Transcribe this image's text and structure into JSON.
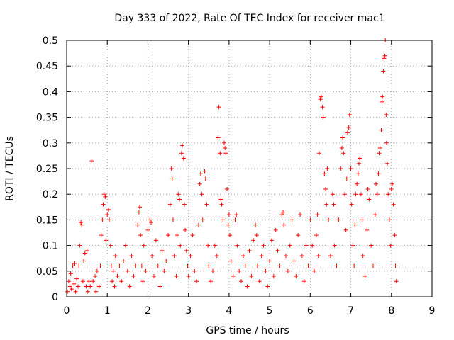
{
  "chart_data": {
    "type": "scatter",
    "title": "Day 333 of 2022, Rate Of TEC Index for receiver mac1",
    "xlabel": "GPS time / hours",
    "ylabel": "ROTI / TECUs",
    "xlim": [
      0,
      9
    ],
    "ylim": [
      0,
      0.5
    ],
    "grid": true,
    "marker": "+",
    "color": "#ff0000",
    "x_ticks": [
      "0",
      "1",
      "2",
      "3",
      "4",
      "5",
      "6",
      "7",
      "8",
      "9"
    ],
    "y_ticks": [
      "0",
      "0.05",
      "0.1",
      "0.15",
      "0.2",
      "0.25",
      "0.3",
      "0.35",
      "0.4",
      "0.45",
      "0.5"
    ],
    "series": [
      {
        "points": [
          [
            0.02,
            0.01
          ],
          [
            0.05,
            0.03
          ],
          [
            0.08,
            0.02
          ],
          [
            0.1,
            0.045
          ],
          [
            0.12,
            0.015
          ],
          [
            0.15,
            0.06
          ],
          [
            0.18,
            0.025
          ],
          [
            0.2,
            0.065
          ],
          [
            0.22,
            0.01
          ],
          [
            0.25,
            0.035
          ],
          [
            0.28,
            0.02
          ],
          [
            0.3,
            0.06
          ],
          [
            0.32,
            0.1
          ],
          [
            0.35,
            0.145
          ],
          [
            0.37,
            0.14
          ],
          [
            0.4,
            0.03
          ],
          [
            0.42,
            0.07
          ],
          [
            0.45,
            0.085
          ],
          [
            0.48,
            0.02
          ],
          [
            0.5,
            0.09
          ],
          [
            0.52,
            0.01
          ],
          [
            0.55,
            0.03
          ],
          [
            0.58,
            0.02
          ],
          [
            0.62,
            0.265
          ],
          [
            0.65,
            0.03
          ],
          [
            0.7,
            0.04
          ],
          [
            0.72,
            0.01
          ],
          [
            0.75,
            0.05
          ],
          [
            0.8,
            0.02
          ],
          [
            0.83,
            0.06
          ],
          [
            0.85,
            0.12
          ],
          [
            0.88,
            0.15
          ],
          [
            0.9,
            0.18
          ],
          [
            0.92,
            0.2
          ],
          [
            0.95,
            0.195
          ],
          [
            0.97,
            0.11
          ],
          [
            1.0,
            0.16
          ],
          [
            1.03,
            0.17
          ],
          [
            1.05,
            0.15
          ],
          [
            1.08,
            0.1
          ],
          [
            1.1,
            0.06
          ],
          [
            1.12,
            0.03
          ],
          [
            1.15,
            0.05
          ],
          [
            1.18,
            0.02
          ],
          [
            1.2,
            0.08
          ],
          [
            1.25,
            0.04
          ],
          [
            1.3,
            0.06
          ],
          [
            1.35,
            0.03
          ],
          [
            1.4,
            0.07
          ],
          [
            1.45,
            0.1
          ],
          [
            1.5,
            0.05
          ],
          [
            1.55,
            0.02
          ],
          [
            1.6,
            0.08
          ],
          [
            1.65,
            0.04
          ],
          [
            1.7,
            0.06
          ],
          [
            1.75,
            0.14
          ],
          [
            1.78,
            0.165
          ],
          [
            1.8,
            0.175
          ],
          [
            1.82,
            0.12
          ],
          [
            1.85,
            0.06
          ],
          [
            1.88,
            0.03
          ],
          [
            1.9,
            0.1
          ],
          [
            1.95,
            0.05
          ],
          [
            2.0,
            0.13
          ],
          [
            2.05,
            0.15
          ],
          [
            2.08,
            0.145
          ],
          [
            2.1,
            0.08
          ],
          [
            2.15,
            0.04
          ],
          [
            2.2,
            0.11
          ],
          [
            2.25,
            0.06
          ],
          [
            2.3,
            0.02
          ],
          [
            2.35,
            0.09
          ],
          [
            2.4,
            0.05
          ],
          [
            2.45,
            0.07
          ],
          [
            2.5,
            0.12
          ],
          [
            2.55,
            0.18
          ],
          [
            2.58,
            0.25
          ],
          [
            2.6,
            0.23
          ],
          [
            2.62,
            0.15
          ],
          [
            2.65,
            0.08
          ],
          [
            2.7,
            0.04
          ],
          [
            2.72,
            0.12
          ],
          [
            2.75,
            0.2
          ],
          [
            2.78,
            0.19
          ],
          [
            2.8,
            0.1
          ],
          [
            2.83,
            0.28
          ],
          [
            2.85,
            0.295
          ],
          [
            2.88,
            0.27
          ],
          [
            2.9,
            0.18
          ],
          [
            2.92,
            0.13
          ],
          [
            2.95,
            0.09
          ],
          [
            2.98,
            0.06
          ],
          [
            3.0,
            0.04
          ],
          [
            3.05,
            0.08
          ],
          [
            3.1,
            0.12
          ],
          [
            3.15,
            0.05
          ],
          [
            3.2,
            0.03
          ],
          [
            3.25,
            0.14
          ],
          [
            3.28,
            0.22
          ],
          [
            3.3,
            0.24
          ],
          [
            3.33,
            0.2
          ],
          [
            3.35,
            0.15
          ],
          [
            3.4,
            0.245
          ],
          [
            3.42,
            0.23
          ],
          [
            3.45,
            0.18
          ],
          [
            3.48,
            0.1
          ],
          [
            3.5,
            0.06
          ],
          [
            3.55,
            0.03
          ],
          [
            3.6,
            0.05
          ],
          [
            3.65,
            0.1
          ],
          [
            3.7,
            0.08
          ],
          [
            3.73,
            0.31
          ],
          [
            3.75,
            0.37
          ],
          [
            3.78,
            0.28
          ],
          [
            3.8,
            0.19
          ],
          [
            3.82,
            0.18
          ],
          [
            3.85,
            0.15
          ],
          [
            3.88,
            0.3
          ],
          [
            3.9,
            0.29
          ],
          [
            3.92,
            0.28
          ],
          [
            3.95,
            0.21
          ],
          [
            3.98,
            0.14
          ],
          [
            4.0,
            0.16
          ],
          [
            4.02,
            0.12
          ],
          [
            4.05,
            0.07
          ],
          [
            4.1,
            0.04
          ],
          [
            4.15,
            0.15
          ],
          [
            4.18,
            0.16
          ],
          [
            4.2,
            0.1
          ],
          [
            4.25,
            0.05
          ],
          [
            4.3,
            0.03
          ],
          [
            4.35,
            0.08
          ],
          [
            4.4,
            0.06
          ],
          [
            4.45,
            0.02
          ],
          [
            4.5,
            0.09
          ],
          [
            4.55,
            0.04
          ],
          [
            4.6,
            0.11
          ],
          [
            4.65,
            0.14
          ],
          [
            4.68,
            0.12
          ],
          [
            4.7,
            0.06
          ],
          [
            4.75,
            0.03
          ],
          [
            4.8,
            0.08
          ],
          [
            4.85,
            0.1
          ],
          [
            4.9,
            0.05
          ],
          [
            4.95,
            0.02
          ],
          [
            5.0,
            0.07
          ],
          [
            5.05,
            0.11
          ],
          [
            5.1,
            0.04
          ],
          [
            5.15,
            0.13
          ],
          [
            5.2,
            0.09
          ],
          [
            5.25,
            0.06
          ],
          [
            5.3,
            0.16
          ],
          [
            5.33,
            0.165
          ],
          [
            5.35,
            0.14
          ],
          [
            5.4,
            0.08
          ],
          [
            5.45,
            0.05
          ],
          [
            5.5,
            0.1
          ],
          [
            5.55,
            0.15
          ],
          [
            5.6,
            0.07
          ],
          [
            5.65,
            0.04
          ],
          [
            5.7,
            0.12
          ],
          [
            5.75,
            0.16
          ],
          [
            5.8,
            0.08
          ],
          [
            5.85,
            0.03
          ],
          [
            5.9,
            0.1
          ],
          [
            5.95,
            0.06
          ],
          [
            6.0,
            0.15
          ],
          [
            6.05,
            0.1
          ],
          [
            6.1,
            0.05
          ],
          [
            6.15,
            0.12
          ],
          [
            6.18,
            0.16
          ],
          [
            6.2,
            0.08
          ],
          [
            6.22,
            0.28
          ],
          [
            6.25,
            0.385
          ],
          [
            6.27,
            0.39
          ],
          [
            6.3,
            0.37
          ],
          [
            6.32,
            0.35
          ],
          [
            6.35,
            0.24
          ],
          [
            6.38,
            0.21
          ],
          [
            6.4,
            0.18
          ],
          [
            6.42,
            0.25
          ],
          [
            6.45,
            0.15
          ],
          [
            6.5,
            0.08
          ],
          [
            6.55,
            0.2
          ],
          [
            6.58,
            0.18
          ],
          [
            6.6,
            0.1
          ],
          [
            6.65,
            0.06
          ],
          [
            6.7,
            0.15
          ],
          [
            6.75,
            0.25
          ],
          [
            6.78,
            0.29
          ],
          [
            6.8,
            0.31
          ],
          [
            6.82,
            0.28
          ],
          [
            6.85,
            0.2
          ],
          [
            6.88,
            0.13
          ],
          [
            6.9,
            0.23
          ],
          [
            6.92,
            0.32
          ],
          [
            6.95,
            0.33
          ],
          [
            6.97,
            0.355
          ],
          [
            7.0,
            0.25
          ],
          [
            7.02,
            0.18
          ],
          [
            7.05,
            0.1
          ],
          [
            7.08,
            0.06
          ],
          [
            7.1,
            0.14
          ],
          [
            7.12,
            0.2
          ],
          [
            7.15,
            0.22
          ],
          [
            7.18,
            0.24
          ],
          [
            7.2,
            0.26
          ],
          [
            7.22,
            0.27
          ],
          [
            7.25,
            0.2
          ],
          [
            7.28,
            0.15
          ],
          [
            7.3,
            0.08
          ],
          [
            7.35,
            0.04
          ],
          [
            7.4,
            0.13
          ],
          [
            7.42,
            0.21
          ],
          [
            7.45,
            0.19
          ],
          [
            7.5,
            0.1
          ],
          [
            7.55,
            0.06
          ],
          [
            7.6,
            0.16
          ],
          [
            7.62,
            0.22
          ],
          [
            7.65,
            0.2
          ],
          [
            7.68,
            0.24
          ],
          [
            7.7,
            0.28
          ],
          [
            7.72,
            0.29
          ],
          [
            7.75,
            0.325
          ],
          [
            7.77,
            0.38
          ],
          [
            7.78,
            0.39
          ],
          [
            7.8,
            0.44
          ],
          [
            7.82,
            0.465
          ],
          [
            7.84,
            0.47
          ],
          [
            7.85,
            0.5
          ],
          [
            7.87,
            0.355
          ],
          [
            7.88,
            0.3
          ],
          [
            7.9,
            0.26
          ],
          [
            7.92,
            0.2
          ],
          [
            7.95,
            0.15
          ],
          [
            7.98,
            0.1
          ],
          [
            8.0,
            0.21
          ],
          [
            8.02,
            0.22
          ],
          [
            8.05,
            0.18
          ],
          [
            8.08,
            0.12
          ],
          [
            8.1,
            0.06
          ],
          [
            8.12,
            0.03
          ]
        ]
      }
    ]
  }
}
